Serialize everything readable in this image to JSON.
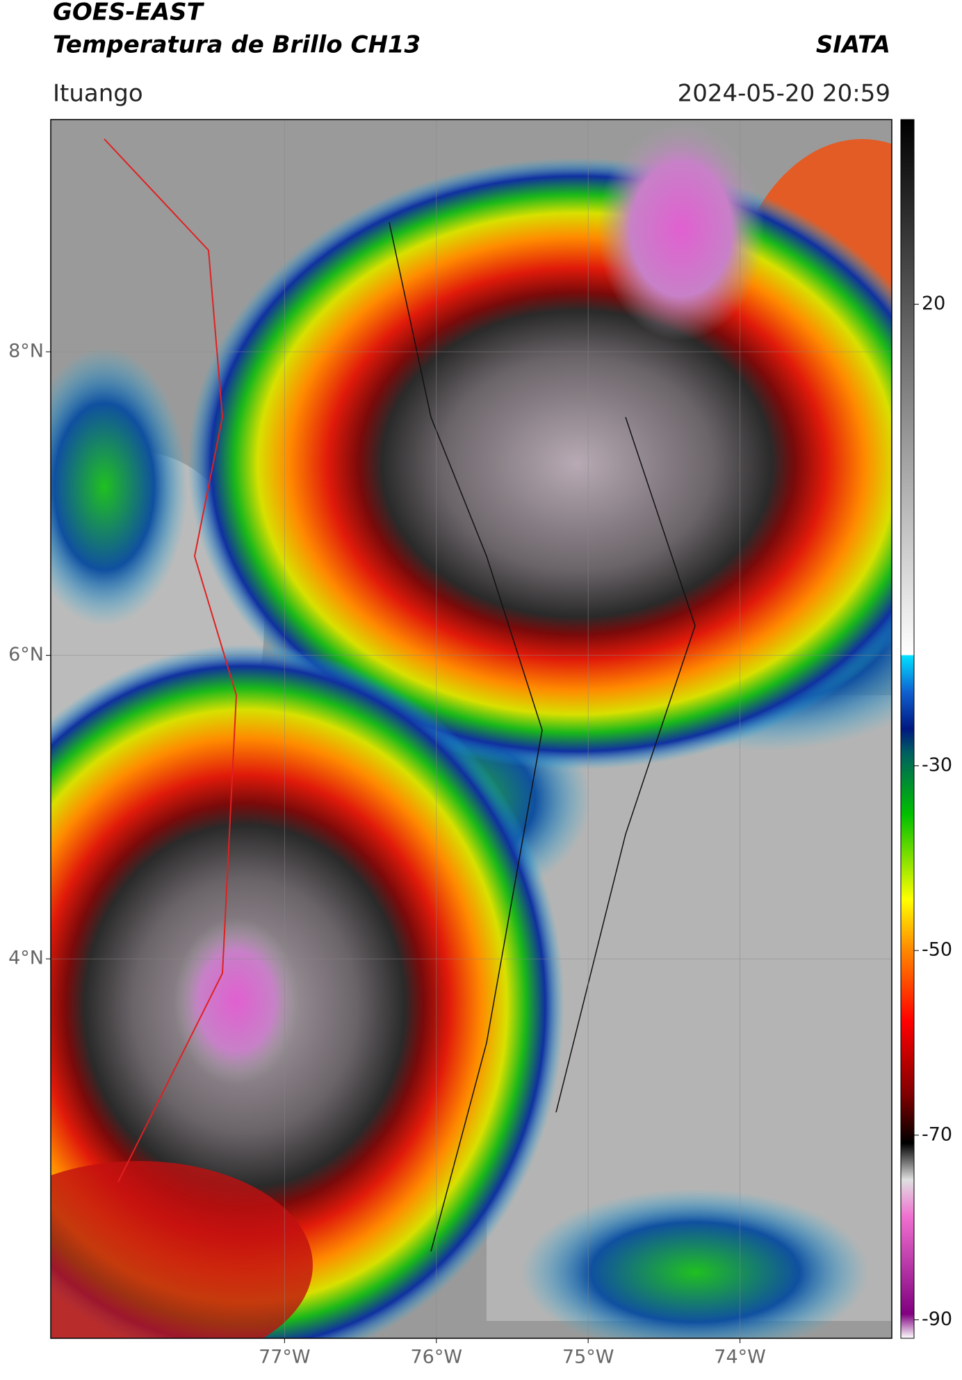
{
  "header": {
    "title": "GOES-EAST",
    "subtitle": "Temperatura de Brillo CH13",
    "source": "SIATA",
    "location": "Ituango",
    "datetime": "2024-05-20 20:59"
  },
  "map": {
    "xlim": [
      -78.54,
      -73.0
    ],
    "ylim": [
      1.5,
      9.53
    ],
    "xticks": [
      {
        "value": -77,
        "label": "77°W"
      },
      {
        "value": -76,
        "label": "76°W"
      },
      {
        "value": -75,
        "label": "75°W"
      },
      {
        "value": -74,
        "label": "74°W"
      }
    ],
    "yticks": [
      {
        "value": 8,
        "label": "8°N"
      },
      {
        "value": 6,
        "label": "6°N"
      },
      {
        "value": 4,
        "label": "4°N"
      }
    ],
    "grid": true
  },
  "colorbar": {
    "lim": [
      -92,
      40
    ],
    "ticks": [
      20,
      -30,
      -50,
      -70,
      -90
    ]
  }
}
